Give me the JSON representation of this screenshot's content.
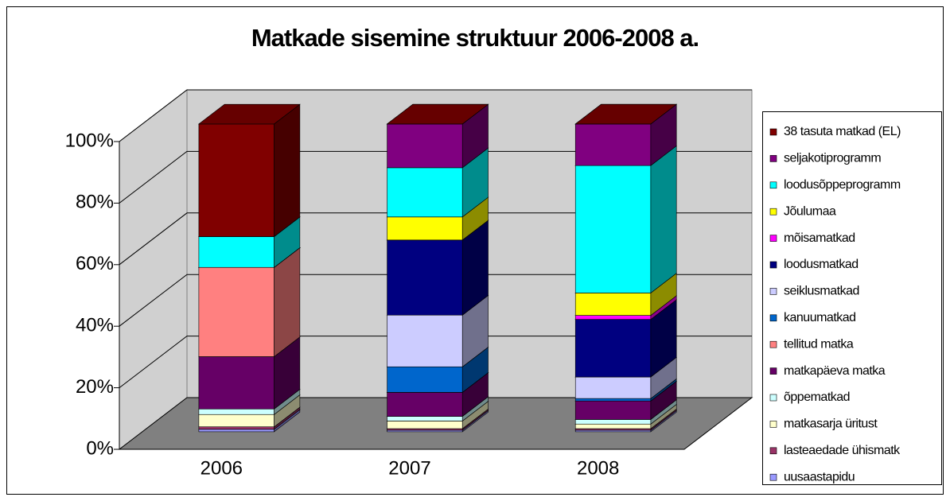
{
  "chart_data": {
    "type": "bar3d_stacked",
    "title": "Matkade sisemine struktuur 2006-2008 a.",
    "categories": [
      "2006",
      "2007",
      "2008"
    ],
    "series": [
      {
        "name": "38 tasuta matkad (EL)",
        "color": "#800000",
        "values": [
          36.6,
          0,
          0
        ]
      },
      {
        "name": "seljakotiprogramm",
        "color": "#800080",
        "values": [
          0,
          14.2,
          13.5
        ]
      },
      {
        "name": "loodusõppeprogramm",
        "color": "#00FFFF",
        "values": [
          10,
          16,
          41.4
        ]
      },
      {
        "name": "Jõulumaa",
        "color": "#FFFF00",
        "values": [
          0,
          7.5,
          7.3
        ]
      },
      {
        "name": "mõisamatkad",
        "color": "#FF00FF",
        "values": [
          0,
          0,
          1.3
        ]
      },
      {
        "name": "loodusmatkad",
        "color": "#000080",
        "values": [
          0,
          24.4,
          18.7
        ]
      },
      {
        "name": "seiklusmatkad",
        "color": "#CCCCFF",
        "values": [
          0,
          16.8,
          7
        ]
      },
      {
        "name": "kanuumatkad",
        "color": "#0066CC",
        "values": [
          0,
          8.3,
          0.8
        ]
      },
      {
        "name": "tellitud matka",
        "color": "#FF8080",
        "values": [
          29,
          0,
          0
        ]
      },
      {
        "name": "matkapäeva matka",
        "color": "#660066",
        "values": [
          17,
          7.8,
          6
        ]
      },
      {
        "name": "õppematkad",
        "color": "#CCFFFF",
        "values": [
          1.8,
          1.5,
          1.5
        ]
      },
      {
        "name": "matkasarja üritust",
        "color": "#FFFFCC",
        "values": [
          4,
          2.5,
          1.5
        ]
      },
      {
        "name": "lasteaedade ühismatk",
        "color": "#993366",
        "values": [
          0.8,
          0.5,
          0.5
        ]
      },
      {
        "name": "uusaastapidu",
        "color": "#9999FF",
        "values": [
          0.8,
          0.5,
          0.5
        ]
      }
    ],
    "ylim": [
      0,
      100
    ],
    "yticks": [
      {
        "value": 0,
        "label": "0%"
      },
      {
        "value": 20,
        "label": "20%"
      },
      {
        "value": 40,
        "label": "40%"
      },
      {
        "value": 60,
        "label": "60%"
      },
      {
        "value": 80,
        "label": "80%"
      },
      {
        "value": 100,
        "label": "100%"
      }
    ],
    "grid": true,
    "stacked": true,
    "legend": "right"
  }
}
